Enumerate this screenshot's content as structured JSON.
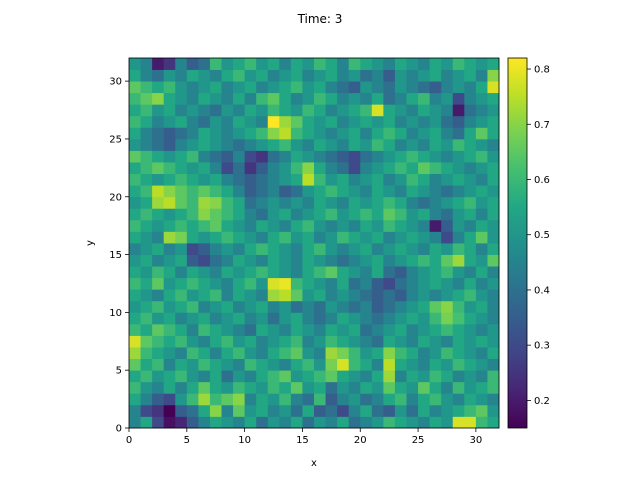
{
  "chart_data": {
    "type": "heatmap",
    "title": "Time: 3",
    "xlabel": "x",
    "ylabel": "y",
    "xlim": [
      0,
      32
    ],
    "ylim": [
      0,
      32
    ],
    "grid": false,
    "colormap": "viridis",
    "colorbar": {
      "range": [
        0.15,
        0.82
      ],
      "ticks": [
        0.2,
        0.3,
        0.4,
        0.5,
        0.6,
        0.7,
        0.8
      ],
      "tick_labels": [
        "0.2",
        "0.3",
        "0.4",
        "0.5",
        "0.6",
        "0.7",
        "0.8"
      ]
    },
    "x_ticks": [
      0,
      5,
      10,
      15,
      20,
      25,
      30
    ],
    "x_tick_labels": [
      "0",
      "5",
      "10",
      "15",
      "20",
      "25",
      "30"
    ],
    "y_ticks": [
      0,
      5,
      10,
      15,
      20,
      25,
      30
    ],
    "y_tick_labels": [
      "0",
      "5",
      "10",
      "15",
      "20",
      "25",
      "30"
    ],
    "grid_size": [
      32,
      32
    ],
    "values_note_rows": "rows ordered from y=0 (bottom) to y=31 (top), columns x=0..31",
    "values": [
      [
        0.45,
        0.55,
        0.3,
        0.18,
        0.22,
        0.35,
        0.45,
        0.55,
        0.5,
        0.45,
        0.55,
        0.4,
        0.5,
        0.45,
        0.55,
        0.4,
        0.5,
        0.45,
        0.55,
        0.4,
        0.45,
        0.5,
        0.6,
        0.55,
        0.5,
        0.45,
        0.55,
        0.5,
        0.78,
        0.78,
        0.6,
        0.55
      ],
      [
        0.45,
        0.3,
        0.25,
        0.15,
        0.35,
        0.4,
        0.55,
        0.7,
        0.45,
        0.65,
        0.5,
        0.55,
        0.45,
        0.5,
        0.4,
        0.55,
        0.35,
        0.4,
        0.3,
        0.45,
        0.55,
        0.4,
        0.35,
        0.5,
        0.4,
        0.55,
        0.45,
        0.5,
        0.55,
        0.6,
        0.65,
        0.5
      ],
      [
        0.55,
        0.45,
        0.35,
        0.3,
        0.5,
        0.6,
        0.72,
        0.6,
        0.65,
        0.7,
        0.45,
        0.55,
        0.5,
        0.6,
        0.45,
        0.4,
        0.6,
        0.35,
        0.45,
        0.5,
        0.4,
        0.45,
        0.55,
        0.6,
        0.45,
        0.55,
        0.6,
        0.5,
        0.45,
        0.55,
        0.5,
        0.45
      ],
      [
        0.6,
        0.5,
        0.45,
        0.55,
        0.45,
        0.55,
        0.65,
        0.55,
        0.5,
        0.6,
        0.55,
        0.5,
        0.6,
        0.55,
        0.65,
        0.5,
        0.55,
        0.4,
        0.5,
        0.45,
        0.55,
        0.5,
        0.65,
        0.55,
        0.5,
        0.65,
        0.55,
        0.45,
        0.6,
        0.5,
        0.55,
        0.6
      ],
      [
        0.55,
        0.6,
        0.5,
        0.55,
        0.6,
        0.5,
        0.45,
        0.55,
        0.4,
        0.5,
        0.45,
        0.55,
        0.6,
        0.65,
        0.5,
        0.55,
        0.6,
        0.65,
        0.55,
        0.5,
        0.45,
        0.55,
        0.72,
        0.45,
        0.55,
        0.5,
        0.6,
        0.55,
        0.45,
        0.5,
        0.45,
        0.6
      ],
      [
        0.65,
        0.55,
        0.6,
        0.45,
        0.55,
        0.5,
        0.6,
        0.55,
        0.5,
        0.45,
        0.6,
        0.55,
        0.5,
        0.45,
        0.55,
        0.6,
        0.5,
        0.68,
        0.78,
        0.6,
        0.55,
        0.45,
        0.75,
        0.55,
        0.5,
        0.45,
        0.55,
        0.5,
        0.6,
        0.55,
        0.5,
        0.45
      ],
      [
        0.72,
        0.6,
        0.55,
        0.5,
        0.45,
        0.6,
        0.55,
        0.45,
        0.55,
        0.6,
        0.5,
        0.45,
        0.55,
        0.6,
        0.65,
        0.5,
        0.45,
        0.72,
        0.68,
        0.6,
        0.5,
        0.55,
        0.7,
        0.6,
        0.55,
        0.45,
        0.5,
        0.6,
        0.55,
        0.5,
        0.45,
        0.55
      ],
      [
        0.78,
        0.65,
        0.6,
        0.55,
        0.6,
        0.5,
        0.45,
        0.55,
        0.6,
        0.5,
        0.55,
        0.45,
        0.5,
        0.55,
        0.6,
        0.45,
        0.5,
        0.6,
        0.55,
        0.5,
        0.45,
        0.4,
        0.55,
        0.5,
        0.45,
        0.55,
        0.5,
        0.45,
        0.55,
        0.5,
        0.55,
        0.5
      ],
      [
        0.6,
        0.55,
        0.65,
        0.6,
        0.55,
        0.45,
        0.6,
        0.55,
        0.5,
        0.45,
        0.4,
        0.55,
        0.5,
        0.45,
        0.55,
        0.5,
        0.45,
        0.55,
        0.5,
        0.55,
        0.4,
        0.45,
        0.5,
        0.55,
        0.45,
        0.5,
        0.55,
        0.6,
        0.55,
        0.5,
        0.45,
        0.5
      ],
      [
        0.55,
        0.6,
        0.5,
        0.55,
        0.45,
        0.5,
        0.55,
        0.45,
        0.5,
        0.55,
        0.45,
        0.5,
        0.4,
        0.5,
        0.55,
        0.45,
        0.4,
        0.45,
        0.55,
        0.5,
        0.45,
        0.4,
        0.45,
        0.5,
        0.55,
        0.5,
        0.6,
        0.68,
        0.62,
        0.55,
        0.5,
        0.45
      ],
      [
        0.5,
        0.55,
        0.6,
        0.5,
        0.55,
        0.6,
        0.45,
        0.5,
        0.55,
        0.45,
        0.5,
        0.55,
        0.45,
        0.5,
        0.4,
        0.45,
        0.4,
        0.5,
        0.45,
        0.4,
        0.45,
        0.35,
        0.4,
        0.45,
        0.5,
        0.55,
        0.65,
        0.7,
        0.6,
        0.5,
        0.55,
        0.45
      ],
      [
        0.55,
        0.5,
        0.45,
        0.55,
        0.6,
        0.5,
        0.55,
        0.6,
        0.45,
        0.55,
        0.5,
        0.45,
        0.72,
        0.75,
        0.65,
        0.5,
        0.55,
        0.45,
        0.5,
        0.45,
        0.4,
        0.35,
        0.4,
        0.35,
        0.45,
        0.5,
        0.45,
        0.5,
        0.55,
        0.6,
        0.5,
        0.45
      ],
      [
        0.6,
        0.55,
        0.65,
        0.5,
        0.55,
        0.6,
        0.55,
        0.5,
        0.45,
        0.55,
        0.6,
        0.5,
        0.78,
        0.8,
        0.6,
        0.55,
        0.5,
        0.45,
        0.55,
        0.4,
        0.45,
        0.35,
        0.3,
        0.4,
        0.45,
        0.5,
        0.55,
        0.5,
        0.45,
        0.55,
        0.45,
        0.5
      ],
      [
        0.55,
        0.5,
        0.6,
        0.55,
        0.45,
        0.55,
        0.5,
        0.45,
        0.55,
        0.5,
        0.55,
        0.6,
        0.55,
        0.5,
        0.45,
        0.55,
        0.6,
        0.65,
        0.55,
        0.5,
        0.45,
        0.55,
        0.4,
        0.35,
        0.45,
        0.5,
        0.55,
        0.6,
        0.5,
        0.45,
        0.55,
        0.45
      ],
      [
        0.5,
        0.55,
        0.45,
        0.5,
        0.55,
        0.35,
        0.3,
        0.4,
        0.45,
        0.55,
        0.5,
        0.45,
        0.55,
        0.5,
        0.45,
        0.55,
        0.5,
        0.45,
        0.4,
        0.45,
        0.5,
        0.55,
        0.45,
        0.5,
        0.55,
        0.6,
        0.55,
        0.65,
        0.72,
        0.55,
        0.5,
        0.65
      ],
      [
        0.45,
        0.5,
        0.55,
        0.45,
        0.5,
        0.3,
        0.35,
        0.45,
        0.5,
        0.45,
        0.55,
        0.6,
        0.55,
        0.5,
        0.45,
        0.55,
        0.6,
        0.5,
        0.45,
        0.5,
        0.55,
        0.45,
        0.5,
        0.55,
        0.5,
        0.45,
        0.55,
        0.5,
        0.6,
        0.55,
        0.45,
        0.55
      ],
      [
        0.55,
        0.5,
        0.45,
        0.72,
        0.68,
        0.55,
        0.5,
        0.55,
        0.6,
        0.55,
        0.5,
        0.45,
        0.55,
        0.6,
        0.5,
        0.55,
        0.45,
        0.5,
        0.6,
        0.55,
        0.5,
        0.55,
        0.45,
        0.5,
        0.55,
        0.5,
        0.45,
        0.3,
        0.45,
        0.55,
        0.65,
        0.5
      ],
      [
        0.6,
        0.55,
        0.5,
        0.55,
        0.6,
        0.55,
        0.6,
        0.65,
        0.55,
        0.5,
        0.45,
        0.55,
        0.5,
        0.45,
        0.55,
        0.6,
        0.5,
        0.45,
        0.5,
        0.45,
        0.55,
        0.5,
        0.6,
        0.55,
        0.5,
        0.45,
        0.2,
        0.35,
        0.5,
        0.45,
        0.55,
        0.5
      ],
      [
        0.55,
        0.6,
        0.55,
        0.5,
        0.55,
        0.6,
        0.7,
        0.65,
        0.6,
        0.55,
        0.45,
        0.4,
        0.5,
        0.55,
        0.45,
        0.5,
        0.55,
        0.6,
        0.5,
        0.55,
        0.6,
        0.55,
        0.65,
        0.6,
        0.5,
        0.55,
        0.45,
        0.4,
        0.5,
        0.55,
        0.45,
        0.55
      ],
      [
        0.5,
        0.55,
        0.72,
        0.75,
        0.65,
        0.6,
        0.72,
        0.7,
        0.6,
        0.55,
        0.4,
        0.45,
        0.5,
        0.45,
        0.5,
        0.45,
        0.55,
        0.5,
        0.45,
        0.55,
        0.5,
        0.55,
        0.6,
        0.55,
        0.45,
        0.4,
        0.45,
        0.5,
        0.55,
        0.6,
        0.5,
        0.55
      ],
      [
        0.55,
        0.6,
        0.75,
        0.7,
        0.65,
        0.6,
        0.65,
        0.6,
        0.55,
        0.45,
        0.35,
        0.4,
        0.45,
        0.35,
        0.4,
        0.5,
        0.55,
        0.6,
        0.55,
        0.5,
        0.45,
        0.55,
        0.5,
        0.45,
        0.55,
        0.5,
        0.45,
        0.4,
        0.45,
        0.5,
        0.55,
        0.5
      ],
      [
        0.6,
        0.55,
        0.5,
        0.55,
        0.6,
        0.55,
        0.5,
        0.55,
        0.45,
        0.4,
        0.35,
        0.4,
        0.45,
        0.5,
        0.55,
        0.75,
        0.6,
        0.5,
        0.55,
        0.45,
        0.5,
        0.55,
        0.45,
        0.5,
        0.6,
        0.55,
        0.45,
        0.5,
        0.55,
        0.5,
        0.45,
        0.55
      ],
      [
        0.55,
        0.6,
        0.65,
        0.6,
        0.55,
        0.5,
        0.55,
        0.45,
        0.3,
        0.4,
        0.25,
        0.35,
        0.45,
        0.5,
        0.6,
        0.7,
        0.55,
        0.45,
        0.4,
        0.3,
        0.45,
        0.5,
        0.55,
        0.6,
        0.55,
        0.65,
        0.6,
        0.55,
        0.5,
        0.45,
        0.5,
        0.55
      ],
      [
        0.65,
        0.6,
        0.55,
        0.5,
        0.55,
        0.6,
        0.45,
        0.4,
        0.35,
        0.45,
        0.3,
        0.25,
        0.4,
        0.45,
        0.55,
        0.5,
        0.45,
        0.4,
        0.35,
        0.3,
        0.4,
        0.45,
        0.5,
        0.55,
        0.6,
        0.55,
        0.5,
        0.45,
        0.5,
        0.55,
        0.6,
        0.5
      ],
      [
        0.5,
        0.45,
        0.4,
        0.35,
        0.45,
        0.5,
        0.55,
        0.5,
        0.45,
        0.4,
        0.45,
        0.5,
        0.55,
        0.6,
        0.5,
        0.45,
        0.55,
        0.5,
        0.45,
        0.55,
        0.5,
        0.6,
        0.55,
        0.45,
        0.5,
        0.45,
        0.55,
        0.5,
        0.6,
        0.55,
        0.5,
        0.45
      ],
      [
        0.55,
        0.45,
        0.4,
        0.35,
        0.4,
        0.45,
        0.55,
        0.5,
        0.45,
        0.5,
        0.55,
        0.6,
        0.7,
        0.75,
        0.6,
        0.55,
        0.5,
        0.45,
        0.5,
        0.55,
        0.45,
        0.55,
        0.6,
        0.55,
        0.45,
        0.5,
        0.55,
        0.45,
        0.4,
        0.55,
        0.65,
        0.55
      ],
      [
        0.6,
        0.55,
        0.45,
        0.5,
        0.55,
        0.45,
        0.4,
        0.5,
        0.45,
        0.55,
        0.5,
        0.45,
        0.82,
        0.72,
        0.65,
        0.55,
        0.5,
        0.55,
        0.45,
        0.5,
        0.55,
        0.5,
        0.55,
        0.45,
        0.5,
        0.45,
        0.5,
        0.4,
        0.35,
        0.45,
        0.5,
        0.55
      ],
      [
        0.55,
        0.6,
        0.5,
        0.55,
        0.45,
        0.5,
        0.45,
        0.4,
        0.5,
        0.45,
        0.55,
        0.5,
        0.6,
        0.55,
        0.5,
        0.6,
        0.55,
        0.45,
        0.5,
        0.55,
        0.6,
        0.78,
        0.55,
        0.5,
        0.45,
        0.55,
        0.5,
        0.45,
        0.2,
        0.4,
        0.45,
        0.5
      ],
      [
        0.6,
        0.65,
        0.7,
        0.55,
        0.5,
        0.45,
        0.55,
        0.5,
        0.45,
        0.55,
        0.45,
        0.6,
        0.65,
        0.55,
        0.45,
        0.5,
        0.6,
        0.55,
        0.45,
        0.5,
        0.45,
        0.55,
        0.4,
        0.45,
        0.55,
        0.6,
        0.45,
        0.5,
        0.3,
        0.45,
        0.5,
        0.55
      ],
      [
        0.65,
        0.6,
        0.55,
        0.6,
        0.5,
        0.45,
        0.5,
        0.55,
        0.45,
        0.5,
        0.55,
        0.45,
        0.5,
        0.55,
        0.6,
        0.5,
        0.55,
        0.45,
        0.4,
        0.35,
        0.5,
        0.45,
        0.4,
        0.5,
        0.45,
        0.4,
        0.35,
        0.45,
        0.5,
        0.45,
        0.55,
        0.78
      ],
      [
        0.55,
        0.45,
        0.4,
        0.5,
        0.45,
        0.55,
        0.5,
        0.45,
        0.55,
        0.6,
        0.5,
        0.55,
        0.45,
        0.5,
        0.55,
        0.45,
        0.5,
        0.55,
        0.45,
        0.5,
        0.4,
        0.45,
        0.35,
        0.5,
        0.45,
        0.5,
        0.55,
        0.45,
        0.5,
        0.55,
        0.45,
        0.7
      ],
      [
        0.5,
        0.45,
        0.2,
        0.25,
        0.45,
        0.35,
        0.4,
        0.6,
        0.5,
        0.55,
        0.6,
        0.5,
        0.55,
        0.45,
        0.55,
        0.5,
        0.6,
        0.55,
        0.45,
        0.6,
        0.55,
        0.5,
        0.45,
        0.55,
        0.5,
        0.45,
        0.55,
        0.5,
        0.6,
        0.55,
        0.5,
        0.55
      ]
    ]
  }
}
